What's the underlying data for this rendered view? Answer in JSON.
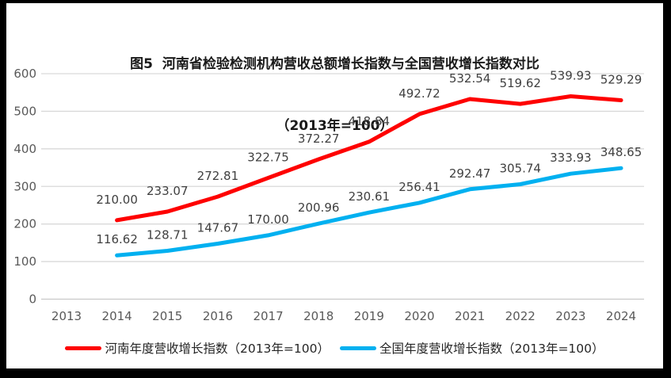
{
  "title": {
    "line1": "图5  河南省检验检测机构营收总额增长指数与全国营收增长指数对比",
    "line2": "（2013年=100）"
  },
  "chart_data": {
    "type": "line",
    "title": "图5  河南省检验检测机构营收总额增长指数与全国营收增长指数对比",
    "subtitle": "（2013年=100）",
    "x": [
      "2013",
      "2014",
      "2015",
      "2016",
      "2017",
      "2018",
      "2019",
      "2020",
      "2021",
      "2022",
      "2023",
      "2024"
    ],
    "series": [
      {
        "name": "河南年度营收增长指数（2013年=100）",
        "color": "#FE0000",
        "x_start": "2014",
        "values": [
          210.0,
          233.07,
          272.81,
          322.75,
          372.27,
          418.84,
          492.72,
          532.54,
          519.62,
          539.93,
          529.29
        ]
      },
      {
        "name": "全国年度营收增长指数（2013年=100）",
        "color": "#00B0F0",
        "x_start": "2014",
        "values": [
          116.62,
          128.71,
          147.67,
          170.0,
          200.96,
          230.61,
          256.41,
          292.47,
          305.74,
          333.93,
          348.65
        ]
      }
    ],
    "ylim": [
      0,
      600
    ],
    "yticks": [
      0,
      100,
      200,
      300,
      400,
      500,
      600
    ],
    "grid": "horizontal",
    "legend_position": "bottom",
    "data_labels": true,
    "data_label_decimals": 2
  },
  "colors": {
    "henan_line": "#FE0000",
    "national_line": "#00B0F0",
    "gridline": "#D9D9D9",
    "axis_line": "#C9C9C9",
    "tick_text": "#595959",
    "data_label_text": "#404040"
  }
}
